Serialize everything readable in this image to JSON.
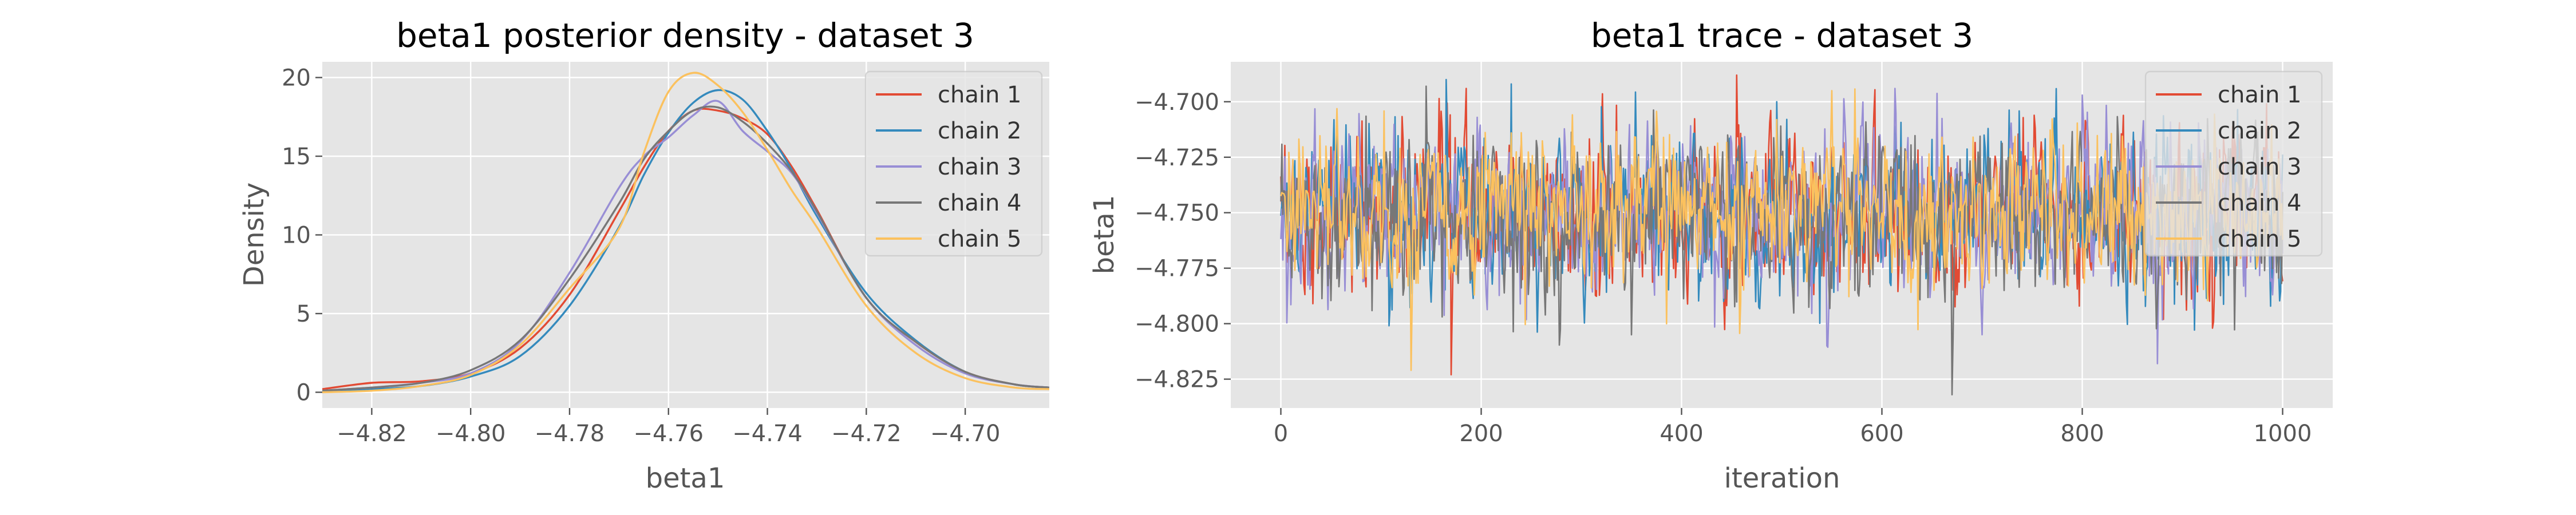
{
  "chart_data": [
    {
      "type": "line",
      "title": "beta1 posterior density - dataset 3",
      "xlabel": "beta1",
      "ylabel": "Density",
      "xlim": [
        -4.83,
        -4.683
      ],
      "ylim": [
        -1,
        21
      ],
      "xticks": [
        -4.82,
        -4.8,
        -4.78,
        -4.76,
        -4.74,
        -4.72,
        -4.7
      ],
      "xtick_labels": [
        "−4.82",
        "−4.80",
        "−4.78",
        "−4.76",
        "−4.74",
        "−4.72",
        "−4.70"
      ],
      "yticks": [
        0,
        5,
        10,
        15,
        20
      ],
      "ytick_labels": [
        "0",
        "5",
        "10",
        "15",
        "20"
      ],
      "grid": true,
      "legend_position": "top-right",
      "series": [
        {
          "name": "chain 1",
          "color": "#E24A33",
          "x": [
            -4.83,
            -4.82,
            -4.81,
            -4.8,
            -4.79,
            -4.78,
            -4.77,
            -4.765,
            -4.76,
            -4.755,
            -4.75,
            -4.745,
            -4.74,
            -4.735,
            -4.73,
            -4.72,
            -4.71,
            -4.7,
            -4.69,
            -4.683
          ],
          "y": [
            0.2,
            0.6,
            0.7,
            1.2,
            2.8,
            6.2,
            11.5,
            14.3,
            16.6,
            17.9,
            17.9,
            17.4,
            16.4,
            14.3,
            11.6,
            6.0,
            3.2,
            1.3,
            0.5,
            0.3
          ]
        },
        {
          "name": "chain 2",
          "color": "#348ABD",
          "x": [
            -4.83,
            -4.82,
            -4.81,
            -4.8,
            -4.79,
            -4.78,
            -4.77,
            -4.765,
            -4.76,
            -4.755,
            -4.75,
            -4.745,
            -4.74,
            -4.735,
            -4.73,
            -4.72,
            -4.71,
            -4.7,
            -4.69,
            -4.683
          ],
          "y": [
            0.1,
            0.2,
            0.4,
            1.0,
            2.3,
            5.5,
            10.5,
            13.8,
            16.5,
            18.4,
            19.2,
            18.6,
            16.6,
            14.1,
            11.2,
            6.3,
            3.3,
            1.3,
            0.5,
            0.3
          ]
        },
        {
          "name": "chain 3",
          "color": "#988ED5",
          "x": [
            -4.83,
            -4.82,
            -4.81,
            -4.8,
            -4.79,
            -4.78,
            -4.77,
            -4.765,
            -4.76,
            -4.755,
            -4.75,
            -4.745,
            -4.74,
            -4.735,
            -4.73,
            -4.72,
            -4.71,
            -4.7,
            -4.69,
            -4.683
          ],
          "y": [
            0.1,
            0.3,
            0.6,
            1.2,
            3.2,
            7.6,
            13.0,
            15.0,
            16.2,
            17.6,
            18.5,
            16.6,
            15.3,
            13.9,
            11.4,
            6.0,
            3.0,
            1.2,
            0.5,
            0.3
          ]
        },
        {
          "name": "chain 4",
          "color": "#777777",
          "x": [
            -4.83,
            -4.82,
            -4.81,
            -4.8,
            -4.79,
            -4.78,
            -4.77,
            -4.765,
            -4.76,
            -4.755,
            -4.75,
            -4.745,
            -4.74,
            -4.735,
            -4.73,
            -4.72,
            -4.71,
            -4.7,
            -4.69,
            -4.683
          ],
          "y": [
            0.1,
            0.3,
            0.6,
            1.4,
            3.3,
            7.2,
            12.0,
            14.8,
            16.6,
            17.9,
            18.1,
            17.2,
            15.8,
            14.0,
            11.5,
            6.0,
            3.2,
            1.3,
            0.5,
            0.3
          ]
        },
        {
          "name": "chain 5",
          "color": "#FBC15E",
          "x": [
            -4.83,
            -4.82,
            -4.81,
            -4.8,
            -4.79,
            -4.78,
            -4.77,
            -4.765,
            -4.76,
            -4.755,
            -4.75,
            -4.745,
            -4.74,
            -4.735,
            -4.73,
            -4.72,
            -4.71,
            -4.7,
            -4.69,
            -4.683
          ],
          "y": [
            0.0,
            0.1,
            0.4,
            1.1,
            3.0,
            6.6,
            10.4,
            15.2,
            19.1,
            20.3,
            19.5,
            17.8,
            15.4,
            12.8,
            10.5,
            5.5,
            2.5,
            0.9,
            0.3,
            0.2
          ]
        }
      ]
    },
    {
      "type": "line",
      "title": "beta1 trace - dataset 3",
      "xlabel": "iteration",
      "ylabel": "beta1",
      "xlim": [
        -50,
        1050
      ],
      "ylim": [
        -4.838,
        -4.682
      ],
      "xticks": [
        0,
        200,
        400,
        600,
        800,
        1000
      ],
      "xtick_labels": [
        "0",
        "200",
        "400",
        "600",
        "800",
        "1000"
      ],
      "yticks": [
        -4.825,
        -4.8,
        -4.775,
        -4.75,
        -4.725,
        -4.7
      ],
      "ytick_labels": [
        "−4.825",
        "−4.800",
        "−4.775",
        "−4.750",
        "−4.725",
        "−4.700"
      ],
      "grid": true,
      "legend_position": "top-right",
      "n_iterations": 1000,
      "series": [
        {
          "name": "chain 1",
          "color": "#E24A33",
          "mean": -4.75,
          "sd": 0.018,
          "extremes": [
            [
              170,
              -4.823
            ],
            [
              455,
              -4.688
            ],
            [
              930,
              -4.802
            ]
          ]
        },
        {
          "name": "chain 2",
          "color": "#348ABD",
          "mean": -4.75,
          "sd": 0.018,
          "extremes": [
            [
              165,
              -4.69
            ],
            [
              230,
              -4.692
            ],
            [
              495,
              -4.7
            ]
          ]
        },
        {
          "name": "chain 3",
          "color": "#988ED5",
          "mean": -4.75,
          "sd": 0.018,
          "extremes": [
            [
              545,
              -4.81
            ],
            [
              875,
              -4.818
            ],
            [
              700,
              -4.805
            ]
          ]
        },
        {
          "name": "chain 4",
          "color": "#777777",
          "mean": -4.75,
          "sd": 0.018,
          "extremes": [
            [
              670,
              -4.832
            ],
            [
              145,
              -4.693
            ],
            [
              350,
              -4.805
            ]
          ]
        },
        {
          "name": "chain 5",
          "color": "#FBC15E",
          "mean": -4.748,
          "sd": 0.017,
          "extremes": [
            [
              130,
              -4.821
            ],
            [
              550,
              -4.695
            ],
            [
              385,
              -4.8
            ]
          ]
        }
      ]
    }
  ]
}
